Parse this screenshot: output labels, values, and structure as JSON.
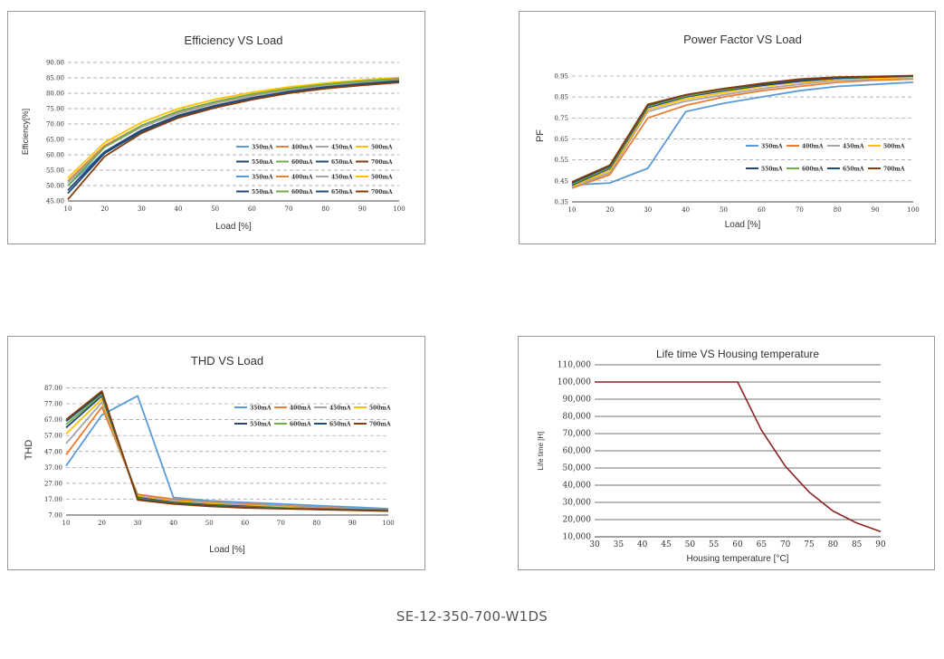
{
  "footer": "SE-12-350-700-W1DS",
  "chart_data": [
    {
      "type": "line",
      "title": "Efficiency VS Load",
      "xlabel": "Load [%]",
      "ylabel": "Efficiency[%]",
      "xlim": [
        10,
        100
      ],
      "ylim": [
        45,
        90
      ],
      "xticks": [
        10,
        20,
        30,
        40,
        50,
        60,
        70,
        80,
        90,
        100
      ],
      "xtick_labels": [
        "10",
        "20",
        "30",
        "40",
        "50",
        "60",
        "70",
        "80",
        "90",
        "100"
      ],
      "yticks": [
        45,
        50,
        55,
        60,
        65,
        70,
        75,
        80,
        85,
        90
      ],
      "ytick_labels": [
        "45.00",
        "50.00",
        "55.00",
        "60.00",
        "65.00",
        "70.00",
        "75.00",
        "80.00",
        "85.00",
        "90.00"
      ],
      "grid": "horizontal-dashed",
      "legend_position": "center-right",
      "legend_columns": 4,
      "x": [
        10,
        20,
        30,
        40,
        50,
        60,
        70,
        80,
        90,
        100
      ],
      "series": [
        {
          "name": "350mA",
          "color": "#5b9bd5",
          "values": [
            50,
            61,
            68,
            72.5,
            75.8,
            78.3,
            80.3,
            81.8,
            83,
            84
          ]
        },
        {
          "name": "400mA",
          "color": "#ed7d31",
          "values": [
            51.5,
            63,
            69.5,
            74,
            77,
            79.4,
            81.2,
            82.6,
            83.7,
            84.6
          ]
        },
        {
          "name": "450mA",
          "color": "#a5a5a5",
          "values": [
            51,
            62.5,
            69,
            73.5,
            76.7,
            79.1,
            81,
            82.4,
            83.5,
            84.4
          ]
        },
        {
          "name": "500mA",
          "color": "#ffc000",
          "values": [
            52.5,
            64,
            70.5,
            75,
            78,
            80.3,
            82,
            83.3,
            84.3,
            85.1
          ]
        },
        {
          "name": "550mA",
          "color": "#264478",
          "values": [
            48.5,
            61,
            68,
            72.8,
            76,
            78.5,
            80.5,
            82,
            83.1,
            84
          ]
        },
        {
          "name": "600mA",
          "color": "#70ad47",
          "values": [
            50,
            62.5,
            69.5,
            74.2,
            77.3,
            79.7,
            81.5,
            82.9,
            83.9,
            84.7
          ]
        },
        {
          "name": "650mA",
          "color": "#1f4e79",
          "values": [
            47.5,
            60.5,
            67.5,
            72.5,
            75.8,
            78.3,
            80.3,
            81.8,
            82.9,
            83.8
          ]
        },
        {
          "name": "700mA",
          "color": "#843c0c",
          "values": [
            45.5,
            59.5,
            67,
            72,
            75.3,
            77.9,
            80,
            81.5,
            82.6,
            83.5
          ]
        }
      ],
      "legend_extra_row1": [
        {
          "name": "350mA",
          "color": "#5b9bd5"
        },
        {
          "name": "400mA",
          "color": "#ed7d31"
        },
        {
          "name": "450mA",
          "color": "#a5a5a5"
        },
        {
          "name": "500mA",
          "color": "#ffc000"
        }
      ],
      "legend_extra_row2": [
        {
          "name": "550mA",
          "color": "#264478"
        },
        {
          "name": "600mA",
          "color": "#70ad47"
        },
        {
          "name": "650mA",
          "color": "#1f4e79"
        },
        {
          "name": "700mA",
          "color": "#843c0c"
        }
      ]
    },
    {
      "type": "line",
      "title": "Power Factor VS Load",
      "xlabel": "Load [%]",
      "ylabel": "PF",
      "xlim": [
        10,
        100
      ],
      "ylim": [
        0.35,
        0.98
      ],
      "xticks": [
        10,
        20,
        30,
        40,
        50,
        60,
        70,
        80,
        90,
        100
      ],
      "xtick_labels": [
        "10",
        "20",
        "30",
        "40",
        "50",
        "60",
        "70",
        "80",
        "90",
        "100"
      ],
      "yticks": [
        0.35,
        0.45,
        0.55,
        0.65,
        0.75,
        0.85,
        0.95
      ],
      "ytick_labels": [
        "0.35",
        "0.45",
        "0.55",
        "0.65",
        "0.75",
        "0.85",
        "0.95"
      ],
      "grid": "horizontal-dashed",
      "legend_position": "center-right",
      "legend_columns": 4,
      "x": [
        10,
        20,
        30,
        40,
        50,
        60,
        70,
        80,
        90,
        100
      ],
      "series": [
        {
          "name": "350mA",
          "color": "#5b9bd5",
          "values": [
            0.43,
            0.44,
            0.51,
            0.78,
            0.82,
            0.85,
            0.88,
            0.9,
            0.91,
            0.92
          ]
        },
        {
          "name": "400mA",
          "color": "#ed7d31",
          "values": [
            0.415,
            0.48,
            0.75,
            0.81,
            0.85,
            0.88,
            0.9,
            0.92,
            0.93,
            0.935
          ]
        },
        {
          "name": "450mA",
          "color": "#a5a5a5",
          "values": [
            0.42,
            0.49,
            0.78,
            0.83,
            0.86,
            0.89,
            0.91,
            0.93,
            0.935,
            0.94
          ]
        },
        {
          "name": "500mA",
          "color": "#ffc000",
          "values": [
            0.425,
            0.5,
            0.79,
            0.84,
            0.87,
            0.9,
            0.92,
            0.935,
            0.94,
            0.945
          ]
        },
        {
          "name": "550mA",
          "color": "#264478",
          "values": [
            0.43,
            0.51,
            0.8,
            0.85,
            0.88,
            0.905,
            0.925,
            0.94,
            0.945,
            0.95
          ]
        },
        {
          "name": "600mA",
          "color": "#70ad47",
          "values": [
            0.435,
            0.515,
            0.805,
            0.855,
            0.885,
            0.91,
            0.93,
            0.94,
            0.945,
            0.95
          ]
        },
        {
          "name": "650mA",
          "color": "#1f4e79",
          "values": [
            0.44,
            0.52,
            0.81,
            0.86,
            0.89,
            0.91,
            0.93,
            0.94,
            0.945,
            0.95
          ]
        },
        {
          "name": "700mA",
          "color": "#843c0c",
          "values": [
            0.445,
            0.525,
            0.815,
            0.86,
            0.89,
            0.915,
            0.935,
            0.945,
            0.948,
            0.952
          ]
        }
      ]
    },
    {
      "type": "line",
      "title": "THD VS Load",
      "xlabel": "Load [%]",
      "ylabel": "THD",
      "xlim": [
        10,
        100
      ],
      "ylim": [
        7,
        89
      ],
      "xticks": [
        10,
        20,
        30,
        40,
        50,
        60,
        70,
        80,
        90,
        100
      ],
      "xtick_labels": [
        "10",
        "20",
        "30",
        "40",
        "50",
        "60",
        "70",
        "80",
        "90",
        "100"
      ],
      "yticks": [
        7,
        17,
        27,
        37,
        47,
        57,
        67,
        77,
        87
      ],
      "ytick_labels": [
        "7.00",
        "17.00",
        "27.00",
        "37.00",
        "47.00",
        "57.00",
        "67.00",
        "77.00",
        "87.00"
      ],
      "grid": "horizontal-dashed",
      "legend_position": "top-right",
      "legend_columns": 4,
      "x": [
        10,
        20,
        30,
        40,
        50,
        60,
        70,
        80,
        90,
        100
      ],
      "series": [
        {
          "name": "350mA",
          "color": "#5b9bd5",
          "values": [
            38,
            70,
            82,
            18,
            16,
            15,
            14,
            13,
            12,
            11
          ]
        },
        {
          "name": "400mA",
          "color": "#ed7d31",
          "values": [
            45,
            75,
            20,
            17,
            15,
            14,
            13,
            12,
            11,
            10.5
          ]
        },
        {
          "name": "450mA",
          "color": "#a5a5a5",
          "values": [
            52,
            78,
            19,
            16,
            14.5,
            13.5,
            12.5,
            11.5,
            11,
            10.5
          ]
        },
        {
          "name": "500mA",
          "color": "#ffc000",
          "values": [
            58,
            80,
            18.5,
            15.5,
            14,
            13,
            12,
            11,
            10.5,
            10
          ]
        },
        {
          "name": "550mA",
          "color": "#264478",
          "values": [
            62,
            82,
            18,
            15,
            13.5,
            12.5,
            11.5,
            11,
            10.5,
            10
          ]
        },
        {
          "name": "600mA",
          "color": "#70ad47",
          "values": [
            64,
            83,
            17.5,
            14.5,
            13,
            12,
            11.5,
            10.8,
            10.3,
            9.8
          ]
        },
        {
          "name": "650mA",
          "color": "#1f4e79",
          "values": [
            66,
            84,
            17,
            14.3,
            12.8,
            11.8,
            11.2,
            10.6,
            10.2,
            9.6
          ]
        },
        {
          "name": "700mA",
          "color": "#843c0c",
          "values": [
            67,
            85,
            16.5,
            14,
            12.5,
            11.5,
            11,
            10.5,
            10,
            9.5
          ]
        }
      ]
    },
    {
      "type": "line",
      "title": "Life time VS Housing temperature",
      "xlabel": "Housing temperature [°C]",
      "ylabel": "Life time [H]",
      "xlim": [
        30,
        90
      ],
      "ylim": [
        10000,
        110000
      ],
      "xticks": [
        30,
        35,
        40,
        45,
        50,
        55,
        60,
        65,
        70,
        75,
        80,
        85,
        90
      ],
      "xtick_labels": [
        "30",
        "35",
        "40",
        "45",
        "50",
        "55",
        "60",
        "65",
        "70",
        "75",
        "80",
        "85",
        "90"
      ],
      "yticks": [
        10000,
        20000,
        30000,
        40000,
        50000,
        60000,
        70000,
        80000,
        90000,
        100000,
        110000
      ],
      "ytick_labels": [
        "10,000",
        "20,000",
        "30,000",
        "40,000",
        "50,000",
        "60,000",
        "70,000",
        "80,000",
        "90,000",
        "100,000",
        "110,000"
      ],
      "grid": "horizontal-solid",
      "x": [
        30,
        35,
        40,
        45,
        50,
        55,
        60,
        65,
        70,
        75,
        80,
        85,
        90
      ],
      "series": [
        {
          "name": "",
          "color": "#8b2323",
          "values": [
            100000,
            100000,
            100000,
            100000,
            100000,
            100000,
            100000,
            72000,
            51000,
            36000,
            25000,
            18000,
            13000
          ]
        }
      ]
    }
  ]
}
